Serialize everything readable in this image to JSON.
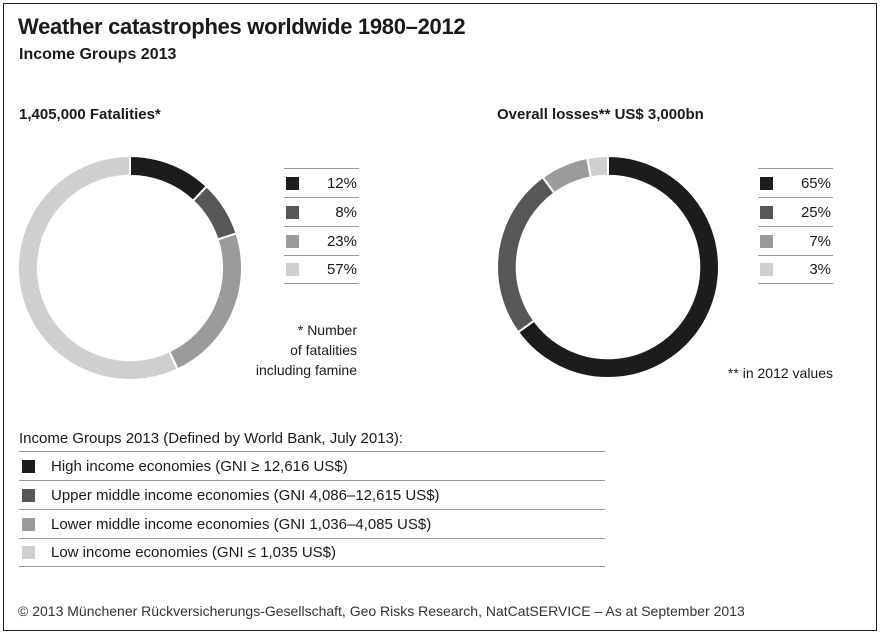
{
  "header": {
    "title": "Weather catastrophes worldwide 1980–2012",
    "subtitle": "Income Groups 2013"
  },
  "colors": {
    "high": "#1c1c1c",
    "upper_middle": "#575757",
    "lower_middle": "#9b9b9b",
    "low": "#cfcfcf"
  },
  "chart_data": [
    {
      "type": "pie",
      "title": "1,405,000 Fatalities*",
      "categories": [
        "High income economies",
        "Upper middle income economies",
        "Lower middle income economies",
        "Low income economies"
      ],
      "values": [
        12,
        8,
        23,
        57
      ],
      "labels": [
        "12%",
        "8%",
        "23%",
        "57%"
      ],
      "colors": [
        "#1c1c1c",
        "#575757",
        "#9b9b9b",
        "#cfcfcf"
      ],
      "donut": true,
      "legend_position": "right",
      "note_lines": [
        "* Number",
        "of fatalities",
        "including famine"
      ]
    },
    {
      "type": "pie",
      "title": "Overall losses** US$ 3,000bn",
      "categories": [
        "High income economies",
        "Upper middle income economies",
        "Lower middle income economies",
        "Low income economies"
      ],
      "values": [
        65,
        25,
        7,
        3
      ],
      "labels": [
        "65%",
        "25%",
        "7%",
        "3%"
      ],
      "colors": [
        "#1c1c1c",
        "#575757",
        "#9b9b9b",
        "#cfcfcf"
      ],
      "donut": true,
      "legend_position": "right",
      "note_lines": [
        "** in 2012 values"
      ]
    }
  ],
  "income_groups": {
    "title": "Income Groups 2013 (Defined by World Bank, July 2013):",
    "items": [
      {
        "label": "High income economies (GNI ≥ 12,616 US$)",
        "color": "#1c1c1c"
      },
      {
        "label": "Upper middle income economies (GNI 4,086–12,615 US$)",
        "color": "#575757"
      },
      {
        "label": "Lower middle income economies (GNI 1,036–4,085 US$)",
        "color": "#9b9b9b"
      },
      {
        "label": "Low income economies (GNI ≤ 1,035 US$)",
        "color": "#cfcfcf"
      }
    ]
  },
  "footer": {
    "text": "© 2013 Münchener Rückversicherungs-Gesellschaft, Geo Risks Research, NatCatSERVICE – As at September 2013"
  }
}
